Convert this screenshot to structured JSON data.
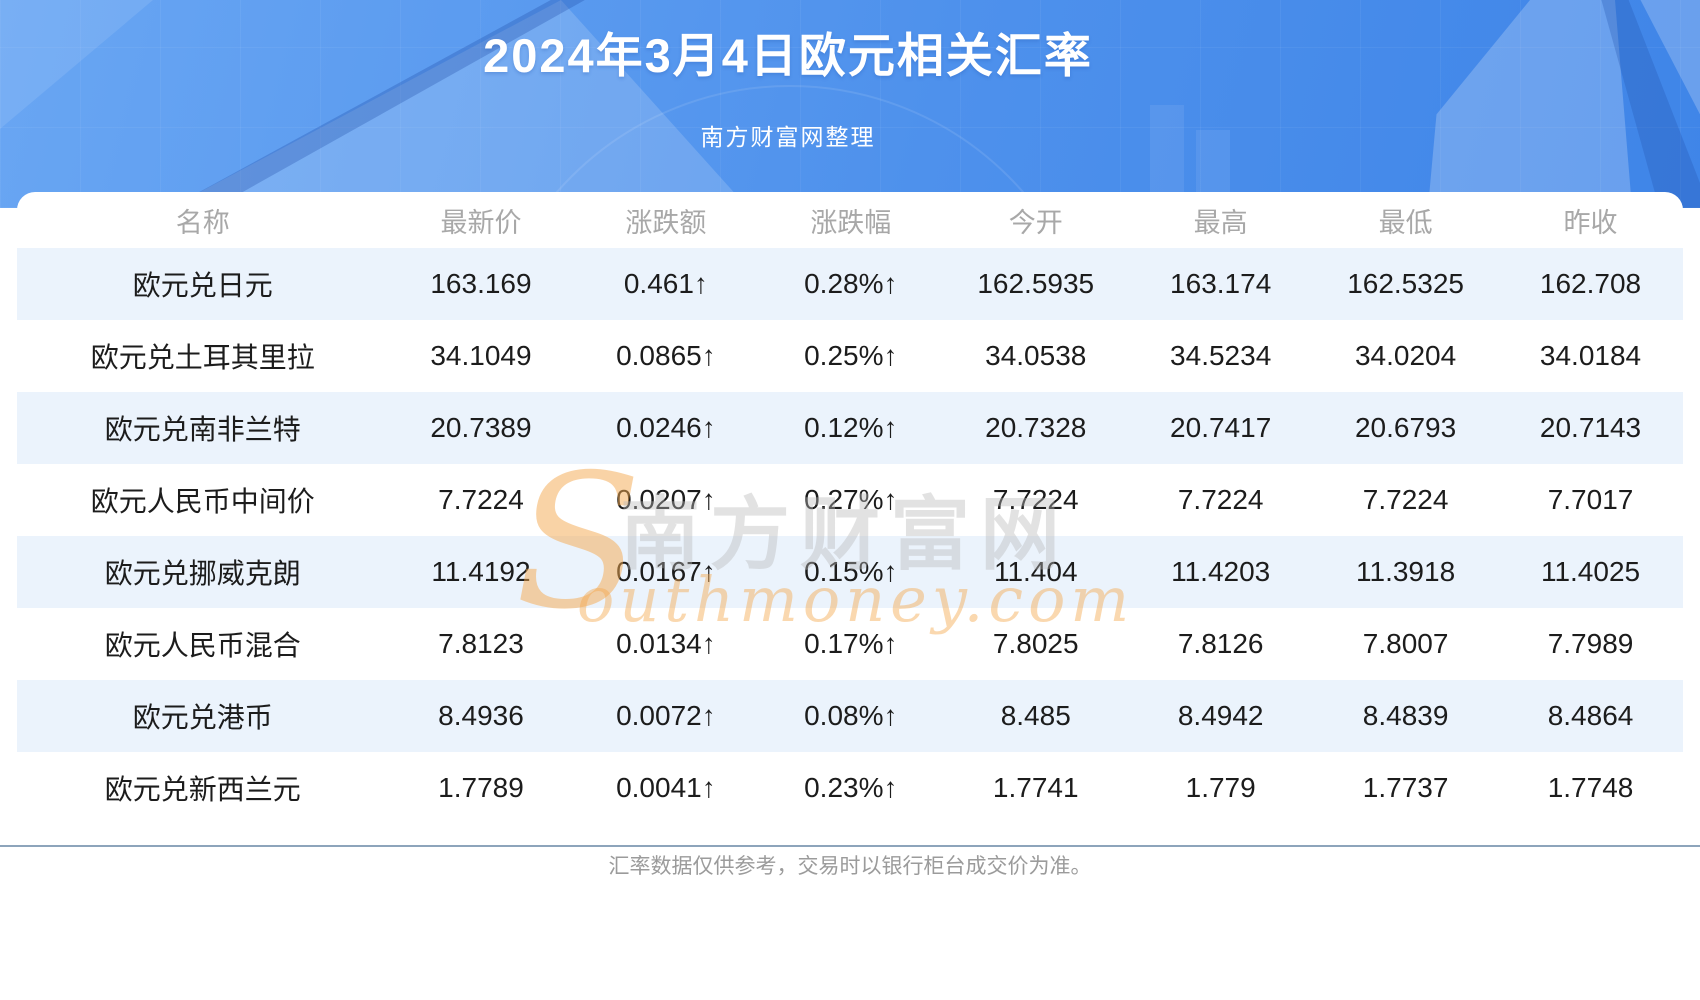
{
  "banner": {
    "title": "2024年3月4日欧元相关汇率",
    "subtitle": "南方财富网整理"
  },
  "table": {
    "columns": [
      "名称",
      "最新价",
      "涨跌额",
      "涨跌幅",
      "今开",
      "最高",
      "最低",
      "昨收"
    ],
    "row_keys": [
      "name",
      "latest",
      "change",
      "change_pct",
      "open",
      "high",
      "low",
      "prev_close"
    ],
    "rows": [
      {
        "name": "欧元兑日元",
        "latest": "163.169",
        "change": "0.461↑",
        "change_pct": "0.28%↑",
        "open": "162.5935",
        "high": "163.174",
        "low": "162.5325",
        "prev_close": "162.708"
      },
      {
        "name": "欧元兑土耳其里拉",
        "latest": "34.1049",
        "change": "0.0865↑",
        "change_pct": "0.25%↑",
        "open": "34.0538",
        "high": "34.5234",
        "low": "34.0204",
        "prev_close": "34.0184"
      },
      {
        "name": "欧元兑南非兰特",
        "latest": "20.7389",
        "change": "0.0246↑",
        "change_pct": "0.12%↑",
        "open": "20.7328",
        "high": "20.7417",
        "low": "20.6793",
        "prev_close": "20.7143"
      },
      {
        "name": "欧元人民币中间价",
        "latest": "7.7224",
        "change": "0.0207↑",
        "change_pct": "0.27%↑",
        "open": "7.7224",
        "high": "7.7224",
        "low": "7.7224",
        "prev_close": "7.7017"
      },
      {
        "name": "欧元兑挪威克朗",
        "latest": "11.4192",
        "change": "0.0167↑",
        "change_pct": "0.15%↑",
        "open": "11.404",
        "high": "11.4203",
        "low": "11.3918",
        "prev_close": "11.4025"
      },
      {
        "name": "欧元人民币混合",
        "latest": "7.8123",
        "change": "0.0134↑",
        "change_pct": "0.17%↑",
        "open": "7.8025",
        "high": "7.8126",
        "low": "7.8007",
        "prev_close": "7.7989"
      },
      {
        "name": "欧元兑港币",
        "latest": "8.4936",
        "change": "0.0072↑",
        "change_pct": "0.08%↑",
        "open": "8.485",
        "high": "8.4942",
        "low": "8.4839",
        "prev_close": "8.4864"
      },
      {
        "name": "欧元兑新西兰元",
        "latest": "1.7789",
        "change": "0.0041↑",
        "change_pct": "0.23%↑",
        "open": "1.7741",
        "high": "1.779",
        "low": "1.7737",
        "prev_close": "1.7748"
      }
    ]
  },
  "watermark": {
    "s": "S",
    "cn": "南方财富网",
    "en": "outhmoney.com"
  },
  "footer": {
    "note": "汇率数据仅供参考，交易时以银行柜台成交价为准。"
  },
  "colors": {
    "banner-from": "#69a6f3",
    "banner-mid": "#4e91ec",
    "banner-to": "#3f85e8",
    "accent-red": "#f31212",
    "text-dark": "#1c1c1c",
    "header-gray": "#a8a8a8",
    "row-alt": "#ebf3fc",
    "divider": "#8da4bb",
    "footer-gray": "#9b9b9b",
    "wm-orange": "#f5a94f",
    "wm-gray": "#b9b9b9"
  }
}
